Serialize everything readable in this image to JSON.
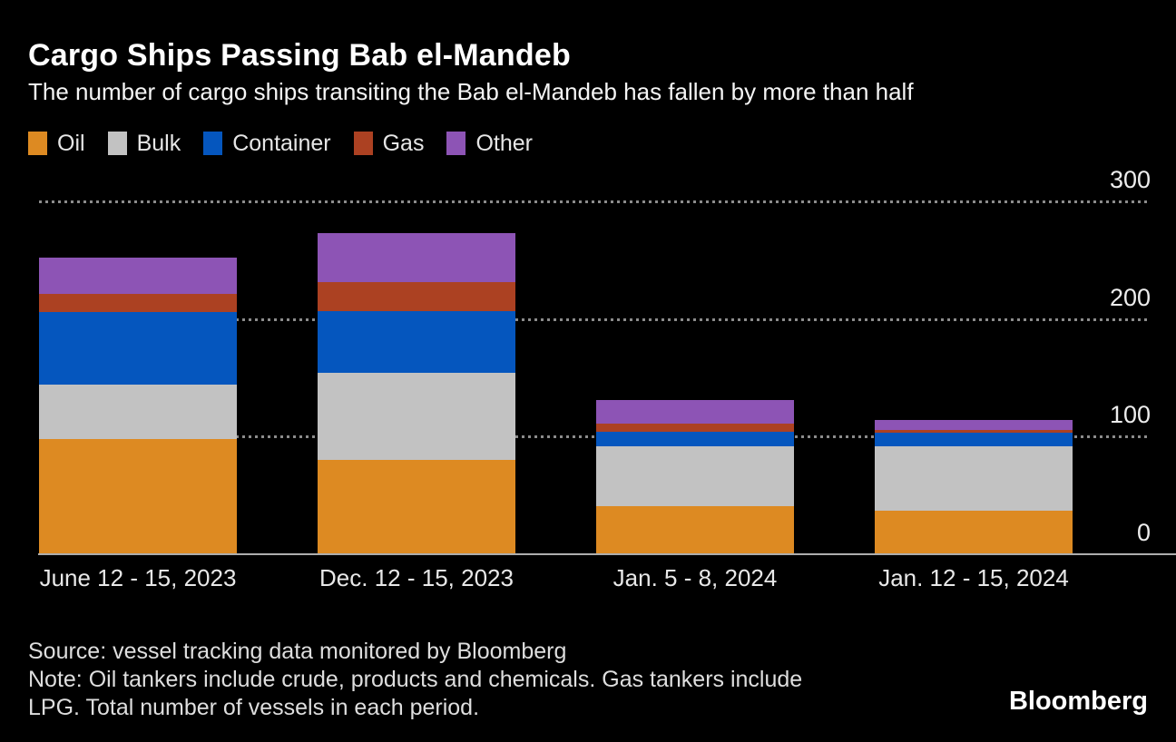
{
  "header": {
    "title": "Cargo Ships Passing Bab el-Mandeb",
    "subtitle": "The number of cargo ships transiting the Bab el-Mandeb has fallen by more than half"
  },
  "colors": {
    "background": "#000000",
    "oil": "#DD8A22",
    "bulk": "#C2C2C2",
    "container": "#0556BE",
    "gas": "#AC4122",
    "other": "#8D54B5",
    "gridline": "#8C8C8C",
    "axis_line": "#ADADAD",
    "title_text": "#FFFFFF",
    "label_text": "#E8E8E8"
  },
  "chart_data": {
    "type": "bar",
    "stacked": true,
    "title": "Cargo Ships Passing Bab el-Mandeb",
    "subtitle": "The number of cargo ships transiting the Bab el-Mandeb has fallen by more than half",
    "xlabel": "",
    "ylabel": "",
    "categories": [
      "June 12 - 15, 2023",
      "Dec. 12 - 15, 2023",
      "Jan. 5 - 8, 2024",
      "Jan. 12 - 15, 2024"
    ],
    "series": [
      {
        "name": "Oil",
        "color": "#DD8A22",
        "values": [
          98,
          80,
          41,
          37
        ]
      },
      {
        "name": "Bulk",
        "color": "#C2C2C2",
        "values": [
          46,
          74,
          51,
          55
        ]
      },
      {
        "name": "Container",
        "color": "#0556BE",
        "values": [
          62,
          53,
          12,
          11
        ]
      },
      {
        "name": "Gas",
        "color": "#AC4122",
        "values": [
          15,
          24,
          7,
          3
        ]
      },
      {
        "name": "Other",
        "color": "#8D54B5",
        "values": [
          31,
          42,
          20,
          8
        ]
      }
    ],
    "totals": [
      252,
      273,
      131,
      114
    ],
    "ylim": [
      0,
      300
    ],
    "yticks": [
      0,
      100,
      200,
      300
    ],
    "y_axis_side": "right",
    "grid": "dotted-horizontal",
    "legend_position": "top-left"
  },
  "footer": {
    "source": "Source: vessel tracking data monitored by Bloomberg",
    "note_lines": [
      "Note: Oil tankers include crude, products and chemicals. Gas tankers include",
      "LPG. Total number of vessels in each period."
    ],
    "logo": "Bloomberg"
  }
}
